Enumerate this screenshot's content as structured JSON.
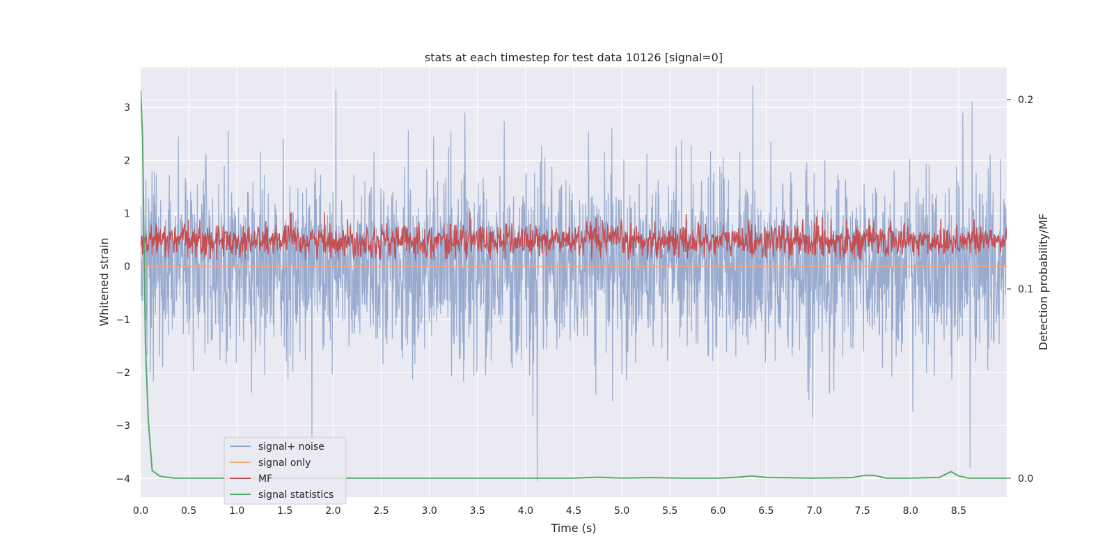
{
  "chart_data": {
    "type": "line",
    "title": "stats at each timestep for test data 10126 [signal=0]",
    "xlabel": "Time (s)",
    "ylabel": "Whitened strain",
    "y2label": "Detection probability/MF",
    "xlim": [
      0.0,
      9.0
    ],
    "ylim": [
      -4.35,
      3.75
    ],
    "y2lim": [
      -0.01,
      0.217
    ],
    "xticks": [
      "0.0",
      "0.5",
      "1.0",
      "1.5",
      "2.0",
      "2.5",
      "3.0",
      "3.5",
      "4.0",
      "4.5",
      "5.0",
      "5.5",
      "6.0",
      "6.5",
      "7.0",
      "7.5",
      "8.0",
      "8.5"
    ],
    "yticks": [
      "3",
      "2",
      "1",
      "0",
      "−1",
      "−2",
      "−3",
      "−4"
    ],
    "y2ticks": [
      "0.2",
      "0.1",
      "0.0"
    ],
    "grid": true,
    "legend_position": "lower-left",
    "colors": {
      "signal_noise": "#8fa4cb",
      "signal_only": "#f4a582",
      "mf": "#c44e52",
      "statistics": "#55a868",
      "background": "#eaeaf2"
    },
    "series": [
      {
        "name": "signal+ noise",
        "axis": "left",
        "note_values": "dense whitened noise approx. within [-2.5, 2.5] with spikes",
        "spikes": [
          {
            "x": 2.03,
            "y": 3.32
          },
          {
            "x": 6.36,
            "y": 3.41
          },
          {
            "x": 8.64,
            "y": 3.1
          },
          {
            "x": 1.78,
            "y": -3.25
          },
          {
            "x": 4.12,
            "y": -4.05
          },
          {
            "x": 8.62,
            "y": -3.8
          },
          {
            "x": 0.1,
            "y": -2.0
          }
        ]
      },
      {
        "name": "signal only",
        "axis": "left",
        "x": [
          0.0,
          9.0
        ],
        "y": [
          0.0,
          0.0
        ]
      },
      {
        "name": "MF",
        "axis": "right",
        "note_values": "fluctuates between about 0.115 and 0.14"
      },
      {
        "name": "signal statistics",
        "axis": "right",
        "x": [
          0.0,
          0.02,
          0.05,
          0.08,
          0.12,
          0.2,
          0.35,
          0.6,
          1.0,
          2.0,
          3.0,
          4.0,
          4.5,
          4.75,
          5.0,
          5.3,
          5.6,
          6.0,
          6.2,
          6.35,
          6.5,
          7.0,
          7.4,
          7.52,
          7.62,
          7.75,
          8.0,
          8.3,
          8.42,
          8.5,
          8.6,
          9.0
        ],
        "y": [
          0.205,
          0.18,
          0.07,
          0.03,
          0.004,
          0.001,
          0.0,
          0.0,
          0.0,
          0.0,
          0.0,
          0.0,
          0.0,
          0.0005,
          0.0,
          0.0003,
          0.0,
          0.0,
          0.0005,
          0.0012,
          0.0004,
          0.0,
          0.0003,
          0.0015,
          0.0015,
          0.0,
          0.0,
          0.0004,
          0.0035,
          0.0012,
          0.0,
          0.0
        ]
      }
    ]
  }
}
